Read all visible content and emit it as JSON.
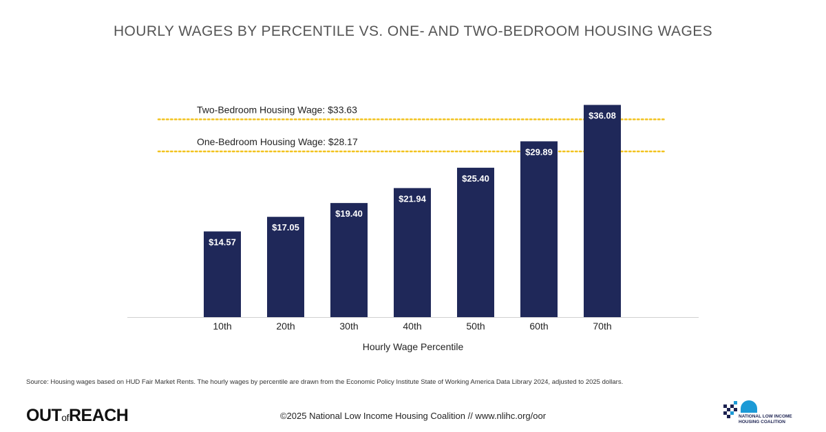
{
  "title": "HOURLY WAGES BY PERCENTILE VS. ONE- AND TWO-BEDROOM HOUSING WAGES",
  "source": "Source: Housing wages based on HUD Fair Market Rents. The hourly wages by percentile are drawn from the Economic Policy Institute State of Working America Data Library 2024, adjusted to 2025 dollars.",
  "footer": {
    "copyright": "©2025 National Low Income Housing Coalition // www.nlihc.org/oor",
    "logo_left_main_1": "OUT",
    "logo_left_of": "of",
    "logo_left_main_2": "REACH",
    "logo_right_text": "NATIONAL LOW INCOME\nHOUSING COALITION"
  },
  "colors": {
    "bar": "#1f2859",
    "reference_line": "#f2c21c",
    "axis": "#d0d0d0"
  },
  "chart_data": {
    "type": "bar",
    "title": "HOURLY WAGES BY PERCENTILE VS. ONE- AND TWO-BEDROOM HOUSING WAGES",
    "xlabel": "Hourly Wage Percentile",
    "ylabel": "",
    "categories": [
      "10th",
      "20th",
      "30th",
      "40th",
      "50th",
      "60th",
      "70th"
    ],
    "values": [
      14.57,
      17.05,
      19.4,
      21.94,
      25.4,
      29.89,
      36.08
    ],
    "data_labels": [
      "$14.57",
      "$17.05",
      "$19.40",
      "$21.94",
      "$25.40",
      "$29.89",
      "$36.08"
    ],
    "ylim": [
      0,
      40
    ],
    "grid": false,
    "reference_lines": [
      {
        "label": "Two-Bedroom Housing Wage: $33.63",
        "value": 33.63,
        "style": "dotted"
      },
      {
        "label": "One-Bedroom Housing Wage: $28.17",
        "value": 28.17,
        "style": "dotted"
      }
    ]
  }
}
